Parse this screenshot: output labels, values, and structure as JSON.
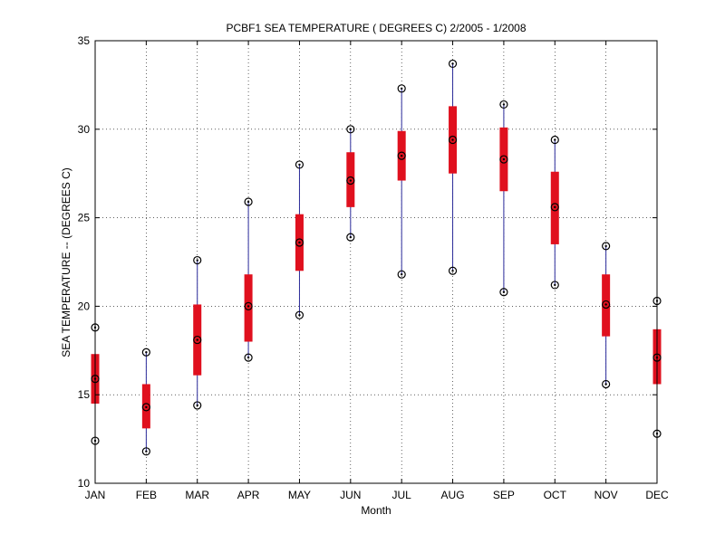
{
  "chart_data": {
    "type": "box",
    "title": "PCBF1  SEA TEMPERATURE ( DEGREES C) 2/2005 - 1/2008",
    "xlabel": "Month",
    "ylabel": "SEA TEMPERATURE -- (DEGREES C)",
    "ylim": [
      10,
      35
    ],
    "yticks": [
      10,
      15,
      20,
      25,
      30,
      35
    ],
    "grid": true,
    "categories": [
      "JAN",
      "FEB",
      "MAR",
      "APR",
      "MAY",
      "JUN",
      "JUL",
      "AUG",
      "SEP",
      "OCT",
      "NOV",
      "DEC"
    ],
    "min": [
      12.4,
      11.8,
      14.4,
      17.1,
      19.5,
      23.9,
      21.8,
      22.0,
      20.8,
      21.2,
      15.6,
      12.8
    ],
    "q1": [
      14.5,
      13.1,
      16.1,
      18.0,
      22.0,
      25.6,
      27.1,
      27.5,
      26.5,
      23.5,
      18.3,
      15.6
    ],
    "median": [
      15.9,
      14.3,
      18.1,
      20.0,
      23.6,
      27.1,
      28.5,
      29.4,
      28.3,
      25.6,
      20.1,
      17.1
    ],
    "q3": [
      17.3,
      15.6,
      20.1,
      21.8,
      25.2,
      28.7,
      29.9,
      31.3,
      30.1,
      27.6,
      21.8,
      18.7
    ],
    "max": [
      18.8,
      17.4,
      22.6,
      25.9,
      28.0,
      30.0,
      32.3,
      33.7,
      31.4,
      29.4,
      23.4,
      20.3
    ],
    "colors": {
      "box": "#e0101e",
      "whisker": "#2a2a9a",
      "marker": "#000000",
      "axis": "#000000",
      "background": "#ffffff"
    }
  }
}
